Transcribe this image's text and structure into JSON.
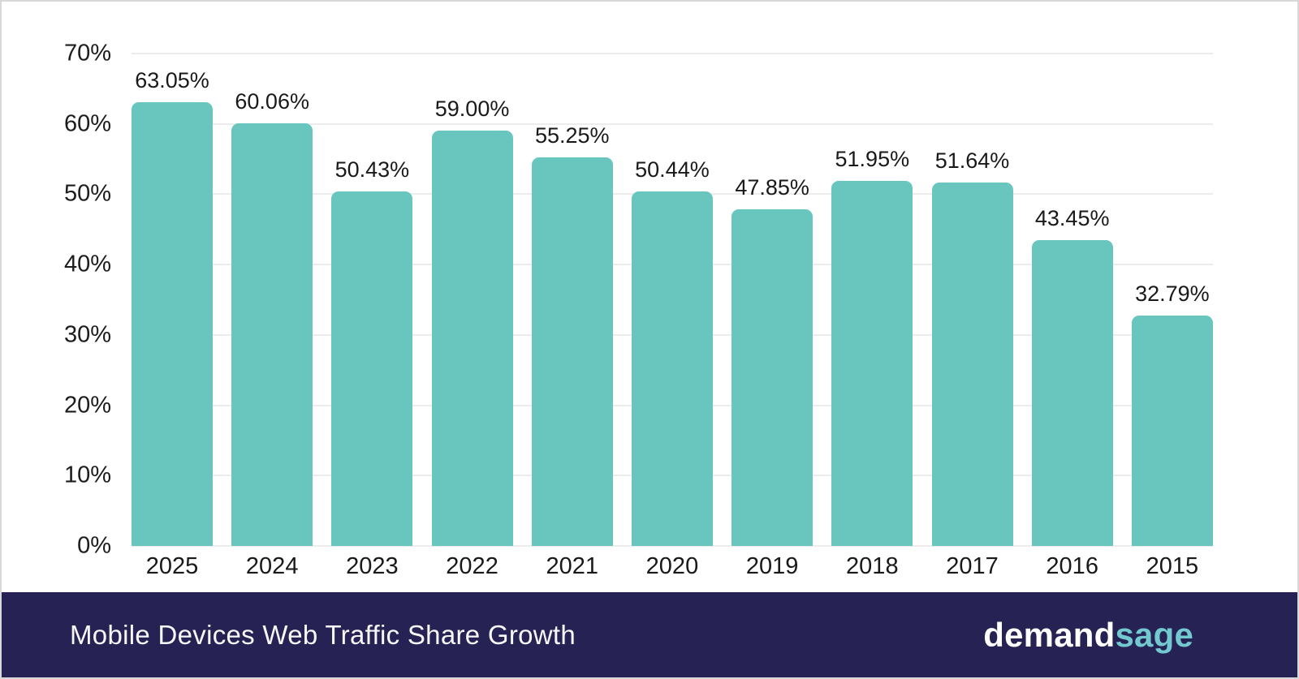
{
  "chart_data": {
    "type": "bar",
    "categories": [
      "2025",
      "2024",
      "2023",
      "2022",
      "2021",
      "2020",
      "2019",
      "2018",
      "2017",
      "2016",
      "2015"
    ],
    "values": [
      63.05,
      60.06,
      50.43,
      59.0,
      55.25,
      50.44,
      47.85,
      51.95,
      51.64,
      43.45,
      32.79
    ],
    "value_labels": [
      "63.05%",
      "60.06%",
      "50.43%",
      "59.00%",
      "55.25%",
      "50.44%",
      "47.85%",
      "51.95%",
      "51.64%",
      "43.45%",
      "32.79%"
    ],
    "title": "Mobile Devices Web Traffic Share Growth",
    "xlabel": "",
    "ylabel": "",
    "ylim": [
      0,
      70
    ],
    "yticks": [
      "70%",
      "60%",
      "50%",
      "40%",
      "30%",
      "20%",
      "10%",
      "0%"
    ],
    "grid": true,
    "legend": false,
    "bar_color": "#68c6be",
    "gridline_color": "#ececec"
  },
  "footer": {
    "title": "Mobile Devices Web Traffic Share Growth",
    "brand_part1": "demand",
    "brand_part2": "sage",
    "bg_color": "#262253",
    "brand_accent_color": "#72c9cf"
  }
}
